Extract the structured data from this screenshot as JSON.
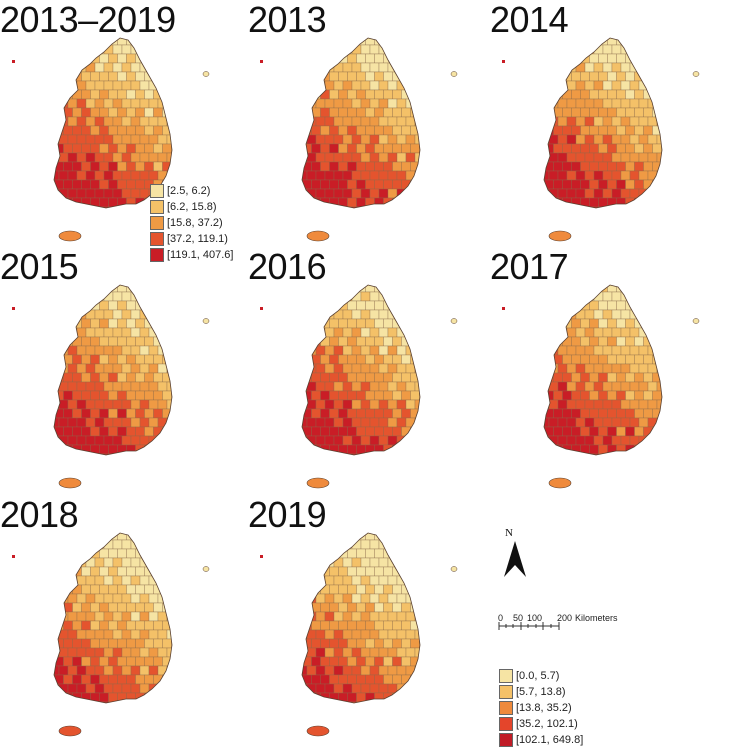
{
  "panels": [
    {
      "title": "2013–2019",
      "fill_profile": "high"
    },
    {
      "title": "2013",
      "fill_profile": "high"
    },
    {
      "title": "2014",
      "fill_profile": "high"
    },
    {
      "title": "2015",
      "fill_profile": "high"
    },
    {
      "title": "2016",
      "fill_profile": "high"
    },
    {
      "title": "2017",
      "fill_profile": "high"
    },
    {
      "title": "2018",
      "fill_profile": "mid"
    },
    {
      "title": "2019",
      "fill_profile": "mid"
    }
  ],
  "legend_overall": {
    "items": [
      {
        "label": "[2.5, 6.2)",
        "color": "#f6e4a4"
      },
      {
        "label": "[6.2, 15.8)",
        "color": "#f4c168"
      },
      {
        "label": "[15.8, 37.2)",
        "color": "#ef9a44"
      },
      {
        "label": "[37.2, 119.1)",
        "color": "#e4542e"
      },
      {
        "label": "[119.1, 407.6]",
        "color": "#c91d26"
      }
    ]
  },
  "legend_annual": {
    "items": [
      {
        "label": "[0.0, 5.7)",
        "color": "#f6e4a4"
      },
      {
        "label": "[5.7, 13.8)",
        "color": "#f4c168"
      },
      {
        "label": "[13.8, 35.2)",
        "color": "#ef8a3c"
      },
      {
        "label": "[35.2, 102.1)",
        "color": "#e4452b"
      },
      {
        "label": "[102.1, 649.8]",
        "color": "#c01b26"
      }
    ]
  },
  "north_arrow": {
    "label": "N"
  },
  "scale_bar": {
    "ticks": [
      "0",
      "50",
      "100",
      "200"
    ],
    "unit": "Kilometers"
  },
  "colors": {
    "boundary": "#8a6a4a",
    "region_outline": "#5a4030"
  }
}
